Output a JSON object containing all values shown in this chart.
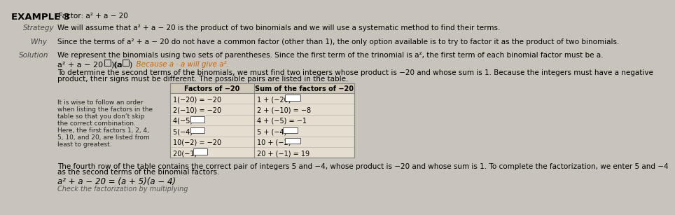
{
  "bg_color": "#c8c4bc",
  "title_bold": "EXAMPLE 3",
  "title_rest": "   Factor: a² + a − 20",
  "strategy_label": "Strategy",
  "strategy_text": "We will assume that a² + a − 20 is the product of two binomials and we will use a systematic method to find their terms.",
  "why_label": "Why",
  "why_text": "Since the terms of a² + a − 20 do not have a common factor (other than 1), the only option available is to try to factor it as the product of two binomials.",
  "solution_label": "Solution",
  "solution_text1": "We represent the binomials using two sets of parentheses. Since the first term of the trinomial is a², the first term of each binomial factor must be a.",
  "equation_left": "a² + a − 20 = (a",
  "equation_mid": ")(a",
  "equation_right": ")",
  "equation_note": "  Because a · a will give a².",
  "solution_text2a": "To determine the second terms of the binomials, we must find two integers whose product is −20 and whose sum is 1. Because the integers must have a negative",
  "solution_text2b": "product, their signs must be different. The possible pairs are listed in the table.",
  "table_header_left": "Factors of −20",
  "table_header_right": "Sum of the factors of −20",
  "table_rows_left": [
    "1(−20) = −20",
    "2(−10) = −20",
    "4(−5) =",
    "5(−4) =",
    "10(−2) = −20",
    "20(−1) ="
  ],
  "table_rows_right": [
    "1 + (−20) =",
    "2 + (−10) = −8",
    "4 + (−5) = −1",
    "5 + (−4) =",
    "10 + (−2) =",
    "20 + (−1) = 19"
  ],
  "left_has_box": [
    false,
    false,
    true,
    true,
    false,
    true
  ],
  "right_has_box": [
    true,
    false,
    false,
    true,
    true,
    false
  ],
  "side_note_lines": [
    "It is wise to follow an order",
    "when listing the factors in the",
    "table so that you don’t skip",
    "the correct combination.",
    "Here, the first factors 1, 2, 4,",
    "5, 10, and 20, are listed from",
    "least to greatest."
  ],
  "conclusion_text1": "The fourth row of the table contains the correct pair of integers 5 and −4, whose product is −20 and whose sum is 1. To complete the factorization, we enter 5 and −4",
  "conclusion_text2": "as the second terms of the binomial factors.",
  "final_eq": "a² + a − 20 = (a + 5)(a − 4)",
  "check_text": "Check the factorization by multiplying"
}
